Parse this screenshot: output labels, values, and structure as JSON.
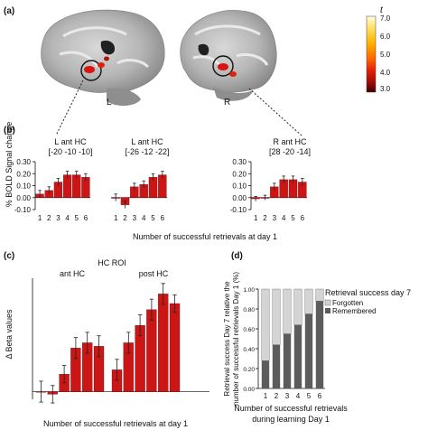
{
  "panels": {
    "a": "(a)",
    "b": "(b)",
    "c": "(c)",
    "d": "(d)"
  },
  "colorbar": {
    "title": "t",
    "ticks": [
      "7.0",
      "6.0",
      "5.0",
      "4.0",
      "3.0"
    ],
    "colors": [
      "#fffde0",
      "#ffe066",
      "#ffb300",
      "#ff6a00",
      "#e0200a",
      "#9a0c06",
      "#3c0000"
    ]
  },
  "brain": {
    "left_label": "L",
    "right_label": "R"
  },
  "colors": {
    "bar_red": "#cc1616",
    "forgotten": "#d4d4d4",
    "remembered": "#5c5c5c"
  },
  "chart_data": [
    {
      "id": "b1",
      "type": "bar",
      "title": "L ant HC",
      "subtitle": "[-20 -10 -10]",
      "categories": [
        "1",
        "2",
        "3",
        "4",
        "5",
        "6"
      ],
      "values": [
        0.03,
        0.06,
        0.13,
        0.19,
        0.19,
        0.17
      ],
      "errors": [
        0.03,
        0.03,
        0.03,
        0.03,
        0.03,
        0.03
      ],
      "ylim": [
        -0.1,
        0.3
      ],
      "yticks": [
        "-0.10",
        "0.00",
        "0.10",
        "0.20",
        "0.30"
      ],
      "ylabel": "% BOLD Signal change"
    },
    {
      "id": "b2",
      "type": "bar",
      "title": "L ant HC",
      "subtitle": "[-26 -12 -22]",
      "categories": [
        "1",
        "2",
        "3",
        "4",
        "5",
        "6"
      ],
      "values": [
        0.0,
        -0.06,
        0.09,
        0.11,
        0.17,
        0.19
      ],
      "errors": [
        0.03,
        0.03,
        0.03,
        0.03,
        0.03,
        0.03
      ],
      "ylim": [
        -0.1,
        0.3
      ]
    },
    {
      "id": "b3",
      "type": "bar",
      "title": "R ant HC",
      "subtitle": "[28 -20 -14]",
      "categories": [
        "1",
        "2",
        "3",
        "4",
        "5",
        "6"
      ],
      "values": [
        -0.01,
        0.0,
        0.09,
        0.15,
        0.15,
        0.13
      ],
      "errors": [
        0.02,
        0.02,
        0.03,
        0.03,
        0.03,
        0.03
      ],
      "ylim": [
        -0.1,
        0.3
      ],
      "yticks": [
        "-0.10",
        "0.00",
        "0.10",
        "0.20",
        "0.30"
      ]
    },
    {
      "id": "c",
      "type": "bar",
      "title": "HC ROI",
      "groups": [
        "ant HC",
        "post HC"
      ],
      "categories": [
        "1",
        "2",
        "3",
        "4",
        "5",
        "6"
      ],
      "series": [
        {
          "name": "ant HC",
          "values": [
            0.0,
            -0.03,
            0.2,
            0.5,
            0.56,
            0.52
          ],
          "errors": [
            0.12,
            0.1,
            0.1,
            0.12,
            0.12,
            0.12
          ]
        },
        {
          "name": "post HC",
          "values": [
            0.25,
            0.56,
            0.76,
            0.94,
            1.12,
            1.01
          ],
          "errors": [
            0.12,
            0.12,
            0.12,
            0.12,
            0.12,
            0.1
          ]
        }
      ],
      "ylim": [
        -0.15,
        1.3
      ],
      "ylabel": "Δ Beta values",
      "xlabel": "Number of successful retrievals at day 1"
    },
    {
      "id": "d",
      "type": "bar",
      "stacked": true,
      "categories": [
        "1",
        "2",
        "3",
        "4",
        "5",
        "6"
      ],
      "series": [
        {
          "name": "Forgotten",
          "values": [
            72,
            56,
            45,
            36,
            25,
            12
          ]
        },
        {
          "name": "Remembered",
          "values": [
            28,
            44,
            55,
            64,
            75,
            88
          ]
        }
      ],
      "ylim": [
        0,
        100
      ],
      "yticks": [
        "0.00",
        "0.20",
        "0.40",
        "0.60",
        "0.80",
        "1.00"
      ],
      "legend_title": "Retrieval success day 7",
      "ylabel_lines": [
        "Retrieval success Day 7 relative the",
        "number of successful retrievals Day 1 (%)"
      ],
      "xlabel_lines": [
        "Number of successful retrievals",
        "during learning Day 1"
      ]
    }
  ],
  "shared_xlabel_b": "Number of successful retrievals at day 1"
}
